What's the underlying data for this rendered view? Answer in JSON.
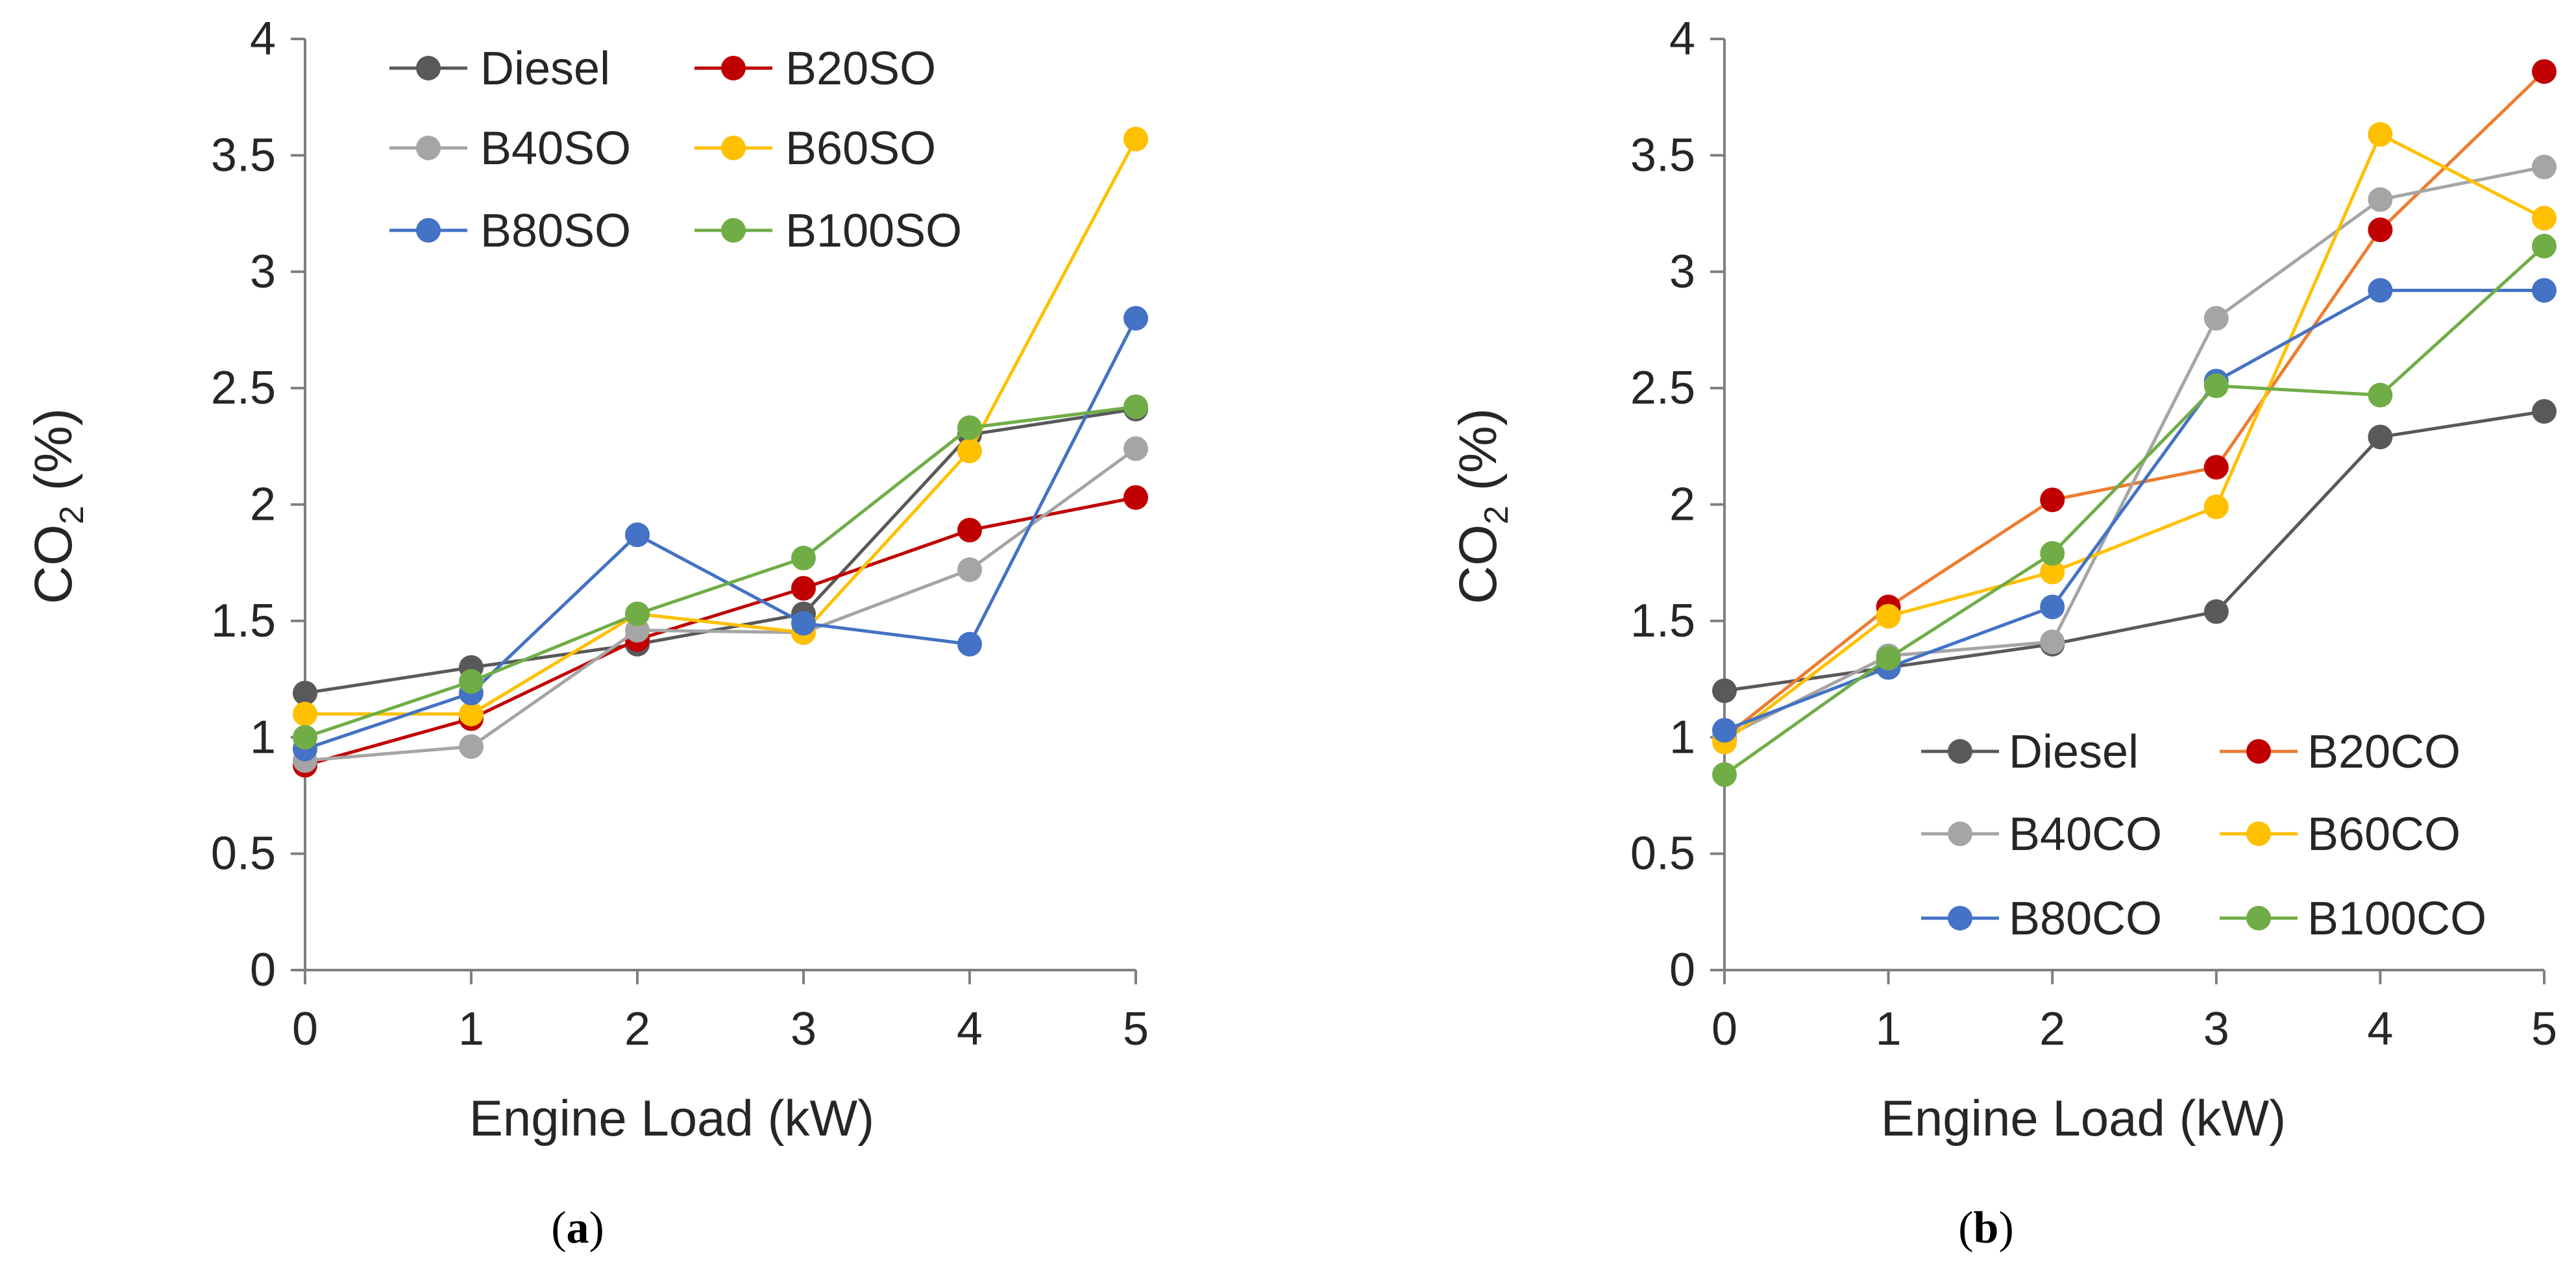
{
  "colors": {
    "Diesel": "#595959",
    "B20": "#c00000",
    "B20_line_b": "#ed7d31",
    "B40": "#a5a5a5",
    "B60": "#ffc000",
    "B80": "#4472c4",
    "B100": "#70ad47",
    "axis": "#7f7f7f",
    "text": "#262626"
  },
  "chart_data": [
    {
      "type": "line",
      "panel_label": "(a)",
      "panel_letter": "a",
      "xlabel": "Engine Load (kW)",
      "ylabel": "CO",
      "ylabel_sub": "2",
      "ylabel_suffix": " (%)",
      "x": [
        0,
        1,
        2,
        3,
        4,
        5
      ],
      "xlim": [
        0,
        5
      ],
      "ylim": [
        0,
        4
      ],
      "x_ticks": [
        "0",
        "1",
        "2",
        "3",
        "4",
        "5"
      ],
      "y_ticks": [
        "0",
        "0.5",
        "1",
        "1.5",
        "2",
        "2.5",
        "3",
        "3.5",
        "4"
      ],
      "grid": false,
      "legend_position": "top-left",
      "series": [
        {
          "name": "Diesel",
          "color": "#595959",
          "values": [
            1.19,
            1.3,
            1.4,
            1.53,
            2.3,
            2.41
          ]
        },
        {
          "name": "B20SO",
          "color": "#c00000",
          "values": [
            0.88,
            1.08,
            1.42,
            1.64,
            1.89,
            2.03
          ]
        },
        {
          "name": "B40SO",
          "color": "#a5a5a5",
          "values": [
            0.9,
            0.96,
            1.46,
            1.45,
            1.72,
            2.24
          ]
        },
        {
          "name": "B60SO",
          "color": "#ffc000",
          "values": [
            1.1,
            1.1,
            1.53,
            1.45,
            2.23,
            3.57
          ]
        },
        {
          "name": "B80SO",
          "color": "#4472c4",
          "values": [
            0.95,
            1.19,
            1.87,
            1.49,
            1.4,
            2.8
          ]
        },
        {
          "name": "B100SO",
          "color": "#70ad47",
          "values": [
            1.0,
            1.24,
            1.53,
            1.77,
            2.33,
            2.42
          ]
        }
      ]
    },
    {
      "type": "line",
      "panel_label": "(b)",
      "panel_letter": "b",
      "xlabel": "Engine Load (kW)",
      "ylabel": "CO",
      "ylabel_sub": "2",
      "ylabel_suffix": " (%)",
      "x": [
        0,
        1,
        2,
        3,
        4,
        5
      ],
      "xlim": [
        0,
        5
      ],
      "ylim": [
        0,
        4
      ],
      "x_ticks": [
        "0",
        "1",
        "2",
        "3",
        "4",
        "5"
      ],
      "y_ticks": [
        "0",
        "0.5",
        "1",
        "1.5",
        "2",
        "2.5",
        "3",
        "3.5",
        "4"
      ],
      "grid": false,
      "legend_position": "bottom-right",
      "series": [
        {
          "name": "Diesel",
          "color": "#595959",
          "line_color": "#595959",
          "values": [
            1.2,
            1.3,
            1.4,
            1.54,
            2.29,
            2.4
          ]
        },
        {
          "name": "B20CO",
          "color": "#c00000",
          "line_color": "#ed7d31",
          "values": [
            1.0,
            1.56,
            2.02,
            2.16,
            3.18,
            3.86
          ]
        },
        {
          "name": "B40CO",
          "color": "#a5a5a5",
          "line_color": "#a5a5a5",
          "values": [
            1.0,
            1.35,
            1.41,
            2.8,
            3.31,
            3.45
          ]
        },
        {
          "name": "B60CO",
          "color": "#ffc000",
          "line_color": "#ffc000",
          "values": [
            0.98,
            1.52,
            1.71,
            1.99,
            3.59,
            3.23
          ]
        },
        {
          "name": "B80CO",
          "color": "#4472c4",
          "line_color": "#4472c4",
          "values": [
            1.03,
            1.3,
            1.56,
            2.53,
            2.92,
            2.92
          ]
        },
        {
          "name": "B100CO",
          "color": "#70ad47",
          "line_color": "#70ad47",
          "values": [
            0.84,
            1.34,
            1.79,
            2.51,
            2.47,
            3.11
          ]
        }
      ]
    }
  ]
}
